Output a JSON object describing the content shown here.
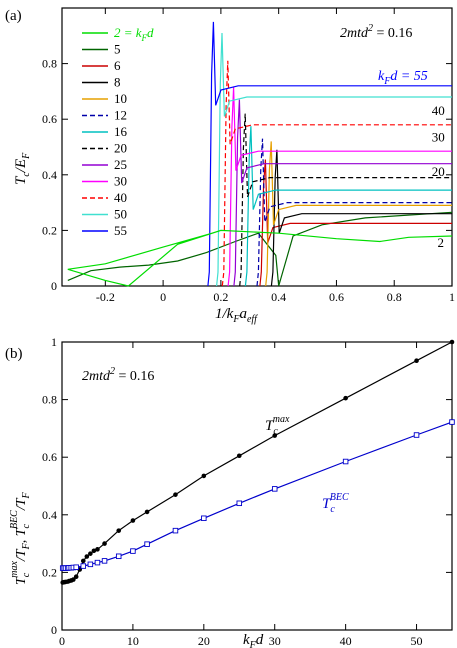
{
  "chart_data": [
    {
      "panel_label": "(a)",
      "type": "line",
      "xlabel": {
        "base": "1/k",
        "sub1": "F",
        "mid": "a",
        "sub2": "eff"
      },
      "ylabel": {
        "base": "T",
        "sub1": "c",
        "mid": "/E",
        "sub2": "F"
      },
      "xlim": [
        -0.35,
        1.0
      ],
      "ylim": [
        0,
        1.0
      ],
      "xticks": [
        -0.2,
        0,
        0.2,
        0.4,
        0.6,
        0.8,
        1
      ],
      "xtick_labels": [
        "-0.2",
        "0",
        "0.2",
        "0.4",
        "0.6",
        "0.8",
        "1"
      ],
      "yticks": [
        0,
        0.2,
        0.4,
        0.6,
        0.8
      ],
      "ytick_labels": [
        "0",
        "0.2",
        "0.4",
        "0.6",
        "0.8"
      ],
      "annotation": {
        "base": "2mtd",
        "sup": "2",
        "rest": " = 0.16"
      },
      "legend_placement": "top-left",
      "legend_header": "2 = k",
      "legend_header_sub": "F",
      "legend_header_tail": "d",
      "series": [
        {
          "name": "5",
          "color": "#006400",
          "dash": false,
          "plateau": 0.265,
          "onset": 0.4,
          "points": [
            [
              -0.33,
              0.02
            ],
            [
              -0.25,
              0.055
            ],
            [
              -0.15,
              0.068
            ],
            [
              -0.05,
              0.075
            ],
            [
              0.05,
              0.09
            ],
            [
              0.15,
              0.12
            ],
            [
              0.25,
              0.16
            ],
            [
              0.33,
              0.19
            ],
            [
              0.39,
              0.11
            ],
            [
              0.4,
              0.0
            ]
          ]
        },
        {
          "name": "6",
          "color": "#cc0000",
          "dash": false,
          "plateau": 0.225,
          "onset": 0.34
        },
        {
          "name": "8",
          "color": "#000000",
          "dash": false,
          "plateau": 0.26,
          "onset": 0.38
        },
        {
          "name": "10",
          "color": "#e6a000",
          "dash": false,
          "plateau": 0.29,
          "onset": 0.36
        },
        {
          "name": "12",
          "color": "#0000aa",
          "dash": true,
          "plateau": 0.3,
          "onset": 0.33
        },
        {
          "name": "16",
          "color": "#00c0c0",
          "dash": false,
          "plateau": 0.345,
          "onset": 0.29
        },
        {
          "name": "20",
          "color": "#000000",
          "dash": true,
          "plateau": 0.39,
          "onset": 0.27
        },
        {
          "name": "25",
          "color": "#9400d3",
          "dash": false,
          "plateau": 0.44,
          "onset": 0.25
        },
        {
          "name": "30",
          "color": "#ff00ff",
          "dash": false,
          "plateau": 0.485,
          "onset": 0.23
        },
        {
          "name": "40",
          "color": "#ff0000",
          "dash": true,
          "plateau": 0.58,
          "onset": 0.21
        },
        {
          "name": "50",
          "color": "#40e0d0",
          "dash": false,
          "plateau": 0.68,
          "onset": 0.19
        },
        {
          "name": "55",
          "color": "#0000ff",
          "dash": false,
          "plateau": 0.72,
          "onset": 0.16
        }
      ],
      "green_curve": {
        "name": "2",
        "color": "#00dd00",
        "points": [
          [
            0.17,
            0.19
          ],
          [
            0.0,
            0.14
          ],
          [
            -0.2,
            0.08
          ],
          [
            -0.33,
            0.06
          ],
          [
            -0.2,
            0.02
          ],
          [
            -0.12,
            0.0
          ],
          [
            0.05,
            0.15
          ],
          [
            0.2,
            0.2
          ],
          [
            0.4,
            0.19
          ],
          [
            0.6,
            0.17
          ],
          [
            0.75,
            0.16
          ],
          [
            0.85,
            0.175
          ],
          [
            1.0,
            0.18
          ]
        ]
      },
      "curve_labels": [
        {
          "text": "40",
          "color": "#ff0000",
          "x": 0.93,
          "y": 0.615
        },
        {
          "text": "30",
          "color": "#ff00ff",
          "x": 0.93,
          "y": 0.52
        },
        {
          "text": "20",
          "color": "#000000",
          "x": 0.93,
          "y": 0.395
        },
        {
          "text": "2",
          "color": "#00dd00",
          "x": 0.95,
          "y": 0.14
        }
      ],
      "kfd_label": {
        "base": "k",
        "sub": "F",
        "rest": "d = 55",
        "color": "#0000ff"
      }
    },
    {
      "panel_label": "(b)",
      "type": "line",
      "xlabel": {
        "base": "k",
        "sub1": "F",
        "mid": "d"
      },
      "ylim": [
        0,
        1.0
      ],
      "xlim": [
        0,
        55
      ],
      "xticks": [
        0,
        10,
        20,
        30,
        40,
        50
      ],
      "xtick_labels": [
        "0",
        "10",
        "20",
        "30",
        "40",
        "50"
      ],
      "yticks": [
        0,
        0.2,
        0.4,
        0.6,
        0.8,
        1
      ],
      "ytick_labels": [
        "0",
        "0.2",
        "0.4",
        "0.6",
        "0.8",
        "1"
      ],
      "annotation": {
        "base": "2mtd",
        "sup": "2",
        "rest": " = 0.16"
      },
      "ylabel_text": {
        "t1": "T",
        "sup1": "max",
        "sub1": "c",
        "mid": "/T",
        "sub2": "F",
        "sep": ",  ",
        "t2": "T",
        "sup2": "BEC",
        "sub3": "c",
        "tail": "/T",
        "sub4": "F"
      },
      "label_max": {
        "base": "T",
        "sub": "c",
        "sup": "max",
        "color": "#000000"
      },
      "label_bec": {
        "base": "T",
        "sub": "c",
        "sup": "BEC",
        "color": "#0000cc"
      },
      "series": [
        {
          "name": "T_c^max",
          "color": "#000000",
          "marker": "circle",
          "x": [
            0.1,
            0.3,
            0.5,
            0.8,
            1.0,
            1.3,
            1.6,
            2,
            2.5,
            3,
            3.5,
            4,
            4.5,
            5,
            6,
            8,
            10,
            12,
            16,
            20,
            25,
            30,
            40,
            50,
            55
          ],
          "y": [
            0.165,
            0.166,
            0.167,
            0.168,
            0.17,
            0.172,
            0.175,
            0.185,
            0.21,
            0.24,
            0.255,
            0.265,
            0.275,
            0.28,
            0.3,
            0.345,
            0.38,
            0.41,
            0.47,
            0.535,
            0.605,
            0.675,
            0.805,
            0.935,
            1.0
          ]
        },
        {
          "name": "T_c^BEC",
          "color": "#0000cc",
          "marker": "square",
          "x": [
            0.1,
            0.3,
            0.5,
            0.8,
            1.0,
            1.3,
            1.6,
            2,
            3,
            4,
            5,
            6,
            8,
            10,
            12,
            16,
            20,
            25,
            30,
            40,
            50,
            55
          ],
          "y": [
            0.215,
            0.215,
            0.215,
            0.215,
            0.216,
            0.216,
            0.217,
            0.218,
            0.222,
            0.228,
            0.234,
            0.24,
            0.256,
            0.274,
            0.298,
            0.345,
            0.388,
            0.44,
            0.49,
            0.585,
            0.677,
            0.722
          ]
        }
      ]
    }
  ]
}
